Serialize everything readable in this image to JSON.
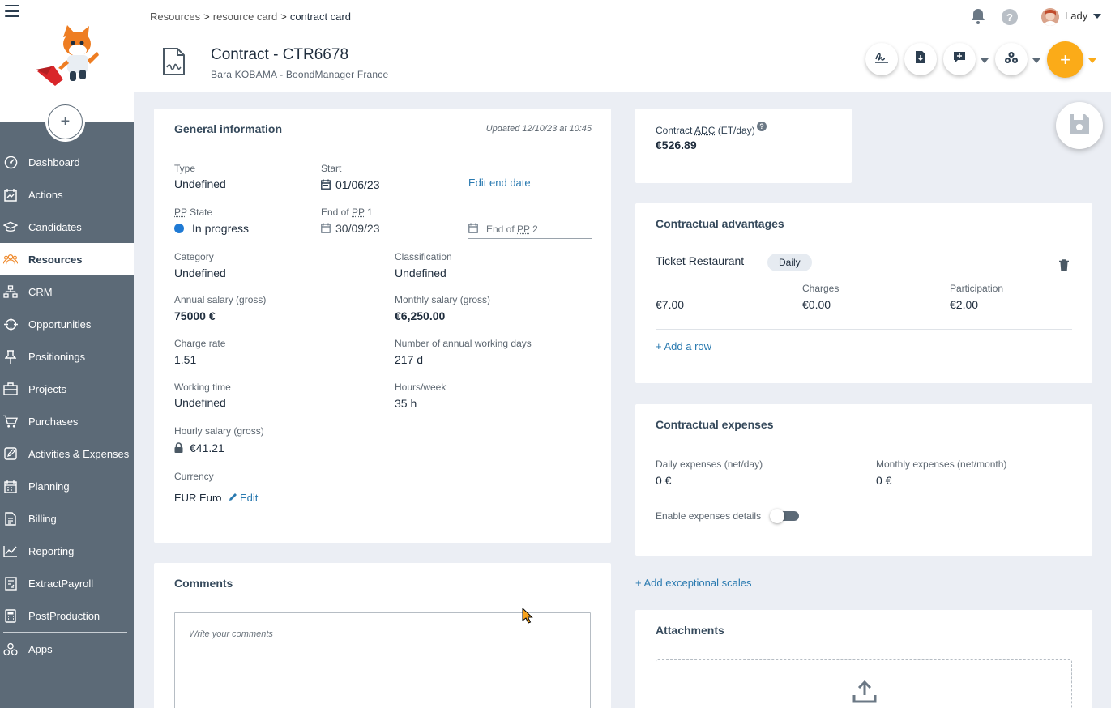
{
  "breadcrumb": {
    "items": [
      "Resources",
      "resource card",
      "contract card"
    ],
    "separator": ">"
  },
  "page": {
    "title": "Contract - CTR6678",
    "subtitle": "Bara KOBAMA - BoondManager France"
  },
  "user": {
    "name": "Lady"
  },
  "help_label": "?",
  "fab_label": "+",
  "sidebar_add_label": "+",
  "sidebar": {
    "items": [
      {
        "label": "Dashboard",
        "icon": "dashboard-icon"
      },
      {
        "label": "Actions",
        "icon": "actions-icon"
      },
      {
        "label": "Candidates",
        "icon": "graduation-cap-icon"
      },
      {
        "label": "Resources",
        "icon": "people-icon",
        "active": true
      },
      {
        "label": "CRM",
        "icon": "org-chart-icon"
      },
      {
        "label": "Opportunities",
        "icon": "target-icon"
      },
      {
        "label": "Positionings",
        "icon": "pin-icon"
      },
      {
        "label": "Projects",
        "icon": "briefcase-icon"
      },
      {
        "label": "Purchases",
        "icon": "cart-icon"
      },
      {
        "label": "Activities & Expenses",
        "icon": "edit-icon"
      },
      {
        "label": "Planning",
        "icon": "calendar-icon"
      },
      {
        "label": "Billing",
        "icon": "invoice-icon"
      },
      {
        "label": "Reporting",
        "icon": "chart-line-icon"
      },
      {
        "label": "ExtractPayroll",
        "icon": "payroll-icon"
      },
      {
        "label": "PostProduction",
        "icon": "calculator-icon"
      },
      {
        "label": "Apps",
        "icon": "apps-icon"
      }
    ]
  },
  "general": {
    "title": "General information",
    "updated": "Updated 12/10/23 at 10:45",
    "type_label": "Type",
    "type_value": "Undefined",
    "start_label": "Start",
    "start_value": "01/06/23",
    "edit_end_date": "Edit end date",
    "pp_abbr": "PP",
    "pp_state_suffix": " State",
    "pp_state_value": "In progress",
    "end_pp1_prefix": "End of ",
    "end_pp1_suffix": " 1",
    "end_pp1_value": "30/09/23",
    "end_pp2_prefix": "End of ",
    "end_pp2_suffix": " 2",
    "category_label": "Category",
    "category_value": "Undefined",
    "classification_label": "Classification",
    "classification_value": "Undefined",
    "annual_label": "Annual salary (gross)",
    "annual_value": "75000 €",
    "monthly_label": "Monthly salary (gross)",
    "monthly_value": "€6,250.00",
    "charge_label": "Charge rate",
    "charge_value": "1.51",
    "days_label": "Number of annual working days",
    "days_value": "217 d",
    "wt_label": "Working time",
    "wt_value": "Undefined",
    "hours_label": "Hours/week",
    "hours_value": "35 h",
    "hourly_label": "Hourly salary (gross)",
    "hourly_value": "€41.21",
    "currency_label": "Currency",
    "currency_value": "EUR Euro",
    "currency_edit": "Edit"
  },
  "adc": {
    "label_prefix": "Contract ",
    "label_abbr": "ADC",
    "label_suffix": " (ET/day)",
    "help": "?",
    "value": "€526.89"
  },
  "advantages": {
    "title": "Contractual advantages",
    "name": "Ticket Restaurant",
    "frequency": "Daily",
    "amount": "€7.00",
    "charges_label": "Charges",
    "charges_value": "€0.00",
    "participation_label": "Participation",
    "participation_value": "€2.00",
    "add_row": "+ Add a row"
  },
  "expenses": {
    "title": "Contractual expenses",
    "daily_label": "Daily expenses (net/day)",
    "daily_value": "0 €",
    "monthly_label": "Monthly expenses (net/month)",
    "monthly_value": "0 €",
    "details_label": "Enable expenses details"
  },
  "scales_link": "+ Add exceptional scales",
  "comments": {
    "title": "Comments",
    "placeholder": "Write your comments"
  },
  "attachments": {
    "title": "Attachments"
  },
  "colors": {
    "sidebar": "#5c6a77",
    "accent": "#fbab18",
    "link": "#2a7ab0",
    "state_dot": "#1f7ad4"
  }
}
